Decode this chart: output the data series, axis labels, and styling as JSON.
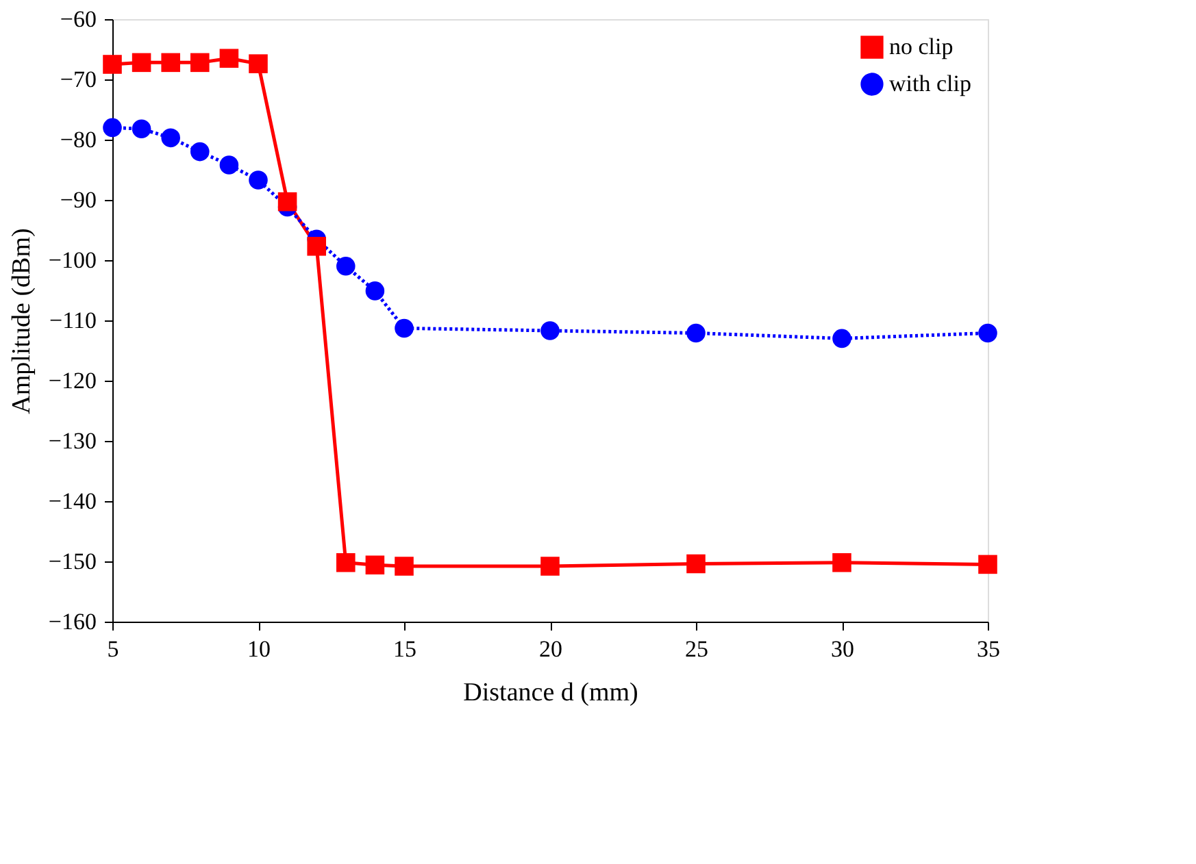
{
  "chart_data": {
    "type": "line",
    "xlabel": "Distance d (mm)",
    "ylabel": "Amplitude (dBm)",
    "xlim": [
      5,
      35
    ],
    "xticks": [
      5,
      10,
      15,
      20,
      25,
      30,
      35
    ],
    "ylim": [
      -160,
      -60
    ],
    "yticks": [
      -160,
      -150,
      -140,
      -130,
      -120,
      -110,
      -100,
      -90,
      -80,
      -70,
      -60
    ],
    "legend": "top right",
    "grid": false,
    "series": [
      {
        "name": "no clip",
        "color": "#ff0000",
        "marker": "square",
        "line_style": "solid",
        "x": [
          5,
          6,
          7,
          8,
          9,
          10,
          11,
          12,
          13,
          14,
          15,
          20,
          25,
          30,
          35
        ],
        "values": [
          -67.5,
          -67.2,
          -67.2,
          -67.2,
          -66.5,
          -67.4,
          -90.3,
          -97.7,
          -150.2,
          -150.6,
          -150.8,
          -150.8,
          -150.4,
          -150.2,
          -150.5
        ]
      },
      {
        "name": "with clip",
        "color": "#0000ff",
        "marker": "circle",
        "line_style": "dotted",
        "x": [
          5,
          6,
          7,
          8,
          9,
          10,
          11,
          12,
          13,
          14,
          15,
          20,
          25,
          30,
          35
        ],
        "values": [
          -78,
          -78.2,
          -79.7,
          -82,
          -84.2,
          -86.7,
          -91.2,
          -96.5,
          -101,
          -105.1,
          -111.3,
          -111.7,
          -112.1,
          -113,
          -112.1
        ]
      }
    ]
  }
}
